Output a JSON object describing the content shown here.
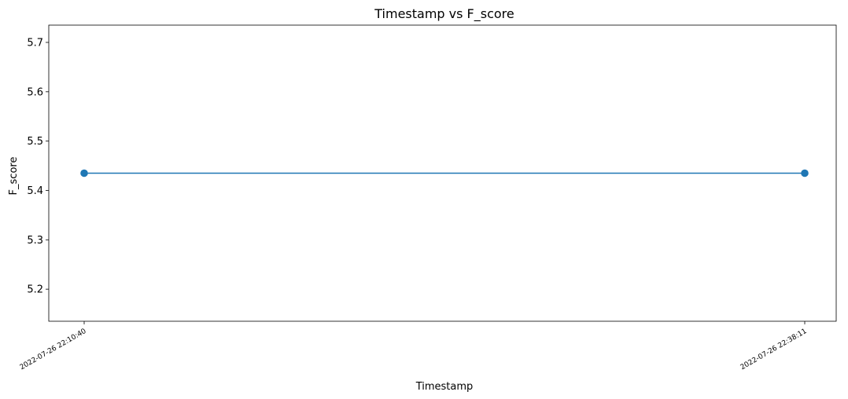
{
  "chart_data": {
    "type": "line",
    "title": "Timestamp vs F_score",
    "xlabel": "Timestamp",
    "ylabel": "F_score",
    "x": [
      "2022-07-26 22:10:40",
      "2022-07-26 22:38:11"
    ],
    "series": [
      {
        "values": [
          5.435,
          5.435
        ],
        "color": "#1f77b4",
        "marker": "circle"
      }
    ],
    "ylim": [
      5.135,
      5.735
    ],
    "yticks": [
      5.2,
      5.3,
      5.4,
      5.5,
      5.6,
      5.7
    ],
    "grid": false,
    "legend": "none"
  }
}
